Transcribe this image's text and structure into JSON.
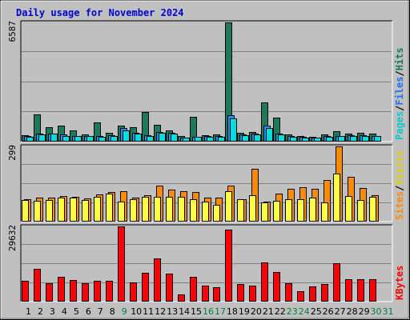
{
  "title": "Daily usage for November 2024",
  "colors": {
    "title": "#0000cc",
    "pages": "#00dddd",
    "files": "#1e90ff",
    "hits": "#1a7a5a",
    "visits": "#ff8c00",
    "sites": "#ffff44",
    "kbytes": "#ff0000",
    "weekday_label": "#000000",
    "weekend_label": "#008040"
  },
  "legends": {
    "top": [
      {
        "text": "Pages",
        "color": "#00cccc"
      },
      {
        "text": "/",
        "color": "#000000"
      },
      {
        "text": "Files",
        "color": "#1e6fff"
      },
      {
        "text": "/",
        "color": "#000000"
      },
      {
        "text": "Hits",
        "color": "#1a7a5a"
      }
    ],
    "middle": [
      {
        "text": "Sites",
        "color": "#ff8c00"
      },
      {
        "text": "/",
        "color": "#000000"
      },
      {
        "text": "Visits",
        "color": "#e6d200"
      }
    ],
    "bottom": [
      {
        "text": "KBytes",
        "color": "#ff0000"
      }
    ]
  },
  "chart_data": [
    {
      "type": "bar",
      "panel": "hits-files-pages",
      "ymax_label": "6587",
      "ylim": [
        0,
        6587
      ],
      "categories": [
        "1",
        "2",
        "3",
        "4",
        "5",
        "6",
        "7",
        "8",
        "9",
        "10",
        "11",
        "12",
        "13",
        "14",
        "15",
        "16",
        "17",
        "18",
        "19",
        "20",
        "21",
        "22",
        "23",
        "24",
        "25",
        "26",
        "27",
        "28",
        "29",
        "30",
        "31"
      ],
      "weekend_days": [
        9,
        16,
        17,
        23,
        24,
        30,
        31
      ],
      "series": [
        {
          "name": "Hits",
          "values": [
            350,
            1520,
            800,
            900,
            620,
            400,
            1060,
            480,
            900,
            800,
            1620,
            950,
            600,
            300,
            1390,
            370,
            380,
            6587,
            480,
            520,
            2180,
            1310,
            380,
            300,
            250,
            380,
            570,
            430,
            480,
            430,
            0
          ]
        },
        {
          "name": "Files",
          "values": [
            300,
            420,
            450,
            380,
            330,
            330,
            320,
            340,
            730,
            500,
            360,
            540,
            480,
            230,
            280,
            300,
            290,
            1470,
            390,
            430,
            880,
            440,
            300,
            250,
            220,
            310,
            320,
            350,
            340,
            330,
            0
          ]
        },
        {
          "name": "Pages",
          "values": [
            260,
            380,
            430,
            330,
            300,
            300,
            280,
            300,
            640,
            450,
            320,
            470,
            420,
            200,
            250,
            270,
            260,
            1290,
            350,
            380,
            770,
            400,
            260,
            220,
            200,
            280,
            290,
            310,
            300,
            300,
            0
          ]
        }
      ]
    },
    {
      "type": "bar",
      "panel": "visits-sites",
      "ymax_label": "299",
      "ylim": [
        0,
        299
      ],
      "categories": [
        "1",
        "2",
        "3",
        "4",
        "5",
        "6",
        "7",
        "8",
        "9",
        "10",
        "11",
        "12",
        "13",
        "14",
        "15",
        "16",
        "17",
        "18",
        "19",
        "20",
        "21",
        "22",
        "23",
        "24",
        "25",
        "26",
        "27",
        "28",
        "29",
        "30",
        "31"
      ],
      "series": [
        {
          "name": "Visits",
          "values": [
            90,
            96,
            97,
            103,
            99,
            93,
            109,
            118,
            121,
            96,
            106,
            142,
            127,
            121,
            119,
            94,
            95,
            143,
            88,
            210,
            78,
            111,
            129,
            138,
            132,
            165,
            299,
            178,
            135,
            106,
            0
          ]
        },
        {
          "name": "Sites",
          "values": [
            85,
            82,
            85,
            97,
            95,
            87,
            100,
            110,
            79,
            89,
            100,
            100,
            98,
            100,
            89,
            81,
            68,
            121,
            88,
            104,
            75,
            82,
            88,
            90,
            95,
            76,
            190,
            102,
            86,
            100,
            0
          ]
        }
      ]
    },
    {
      "type": "bar",
      "panel": "kbytes",
      "ymax_label": "29632",
      "ylim": [
        0,
        29632
      ],
      "categories": [
        "1",
        "2",
        "3",
        "4",
        "5",
        "6",
        "7",
        "8",
        "9",
        "10",
        "11",
        "12",
        "13",
        "14",
        "15",
        "16",
        "17",
        "18",
        "19",
        "20",
        "21",
        "22",
        "23",
        "24",
        "25",
        "26",
        "27",
        "28",
        "29",
        "30",
        "31"
      ],
      "series": [
        {
          "name": "KBytes",
          "values": [
            8100,
            13000,
            7200,
            9900,
            8600,
            7400,
            8200,
            8200,
            29632,
            7700,
            11500,
            17000,
            11000,
            2700,
            9700,
            6300,
            5800,
            28500,
            6900,
            6300,
            15300,
            11800,
            7100,
            4100,
            6100,
            7000,
            15000,
            8800,
            8700,
            8800,
            0
          ]
        }
      ]
    }
  ]
}
